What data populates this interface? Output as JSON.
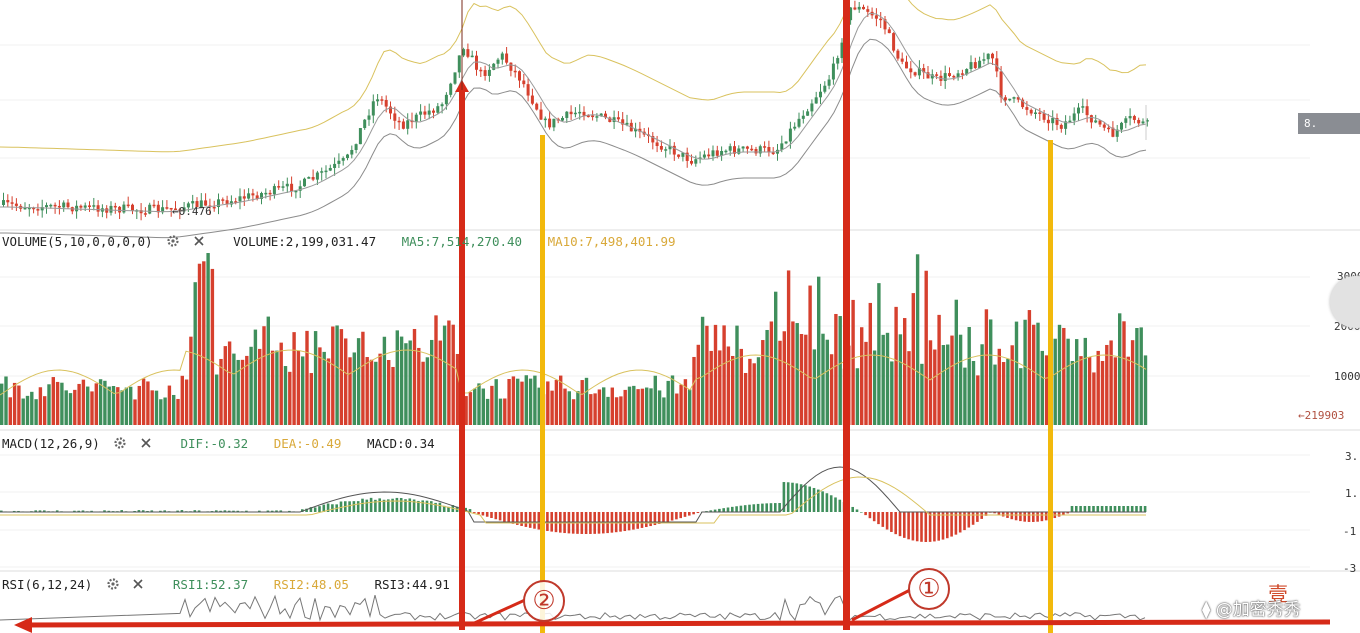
{
  "chart_data": [
    {
      "type": "candlestick",
      "panel": "price",
      "annotations": {
        "low_marker": "0.476",
        "last_price_tag": "8."
      },
      "lines": [
        "MA",
        "Bollinger upper",
        "Bollinger lower"
      ]
    },
    {
      "type": "bar",
      "panel": "volume",
      "indicator": "VOLUME(5,10,0,0,0,0)",
      "volume_label": "VOLUME:2,199,031.47",
      "ma5_label": "MA5:7,514,270.40",
      "ma10_label": "MA10:7,498,401.99",
      "y_ticks": [
        "3000",
        "2000",
        "1000"
      ],
      "last_value_label": "←219903"
    },
    {
      "type": "bar",
      "panel": "macd",
      "indicator": "MACD(12,26,9)",
      "dif_label": "DIF:-0.32",
      "dea_label": "DEA:-0.49",
      "macd_label": "MACD:0.34",
      "y_ticks": [
        "3.",
        "1.",
        "-1",
        "-3"
      ]
    },
    {
      "type": "line",
      "panel": "rsi",
      "indicator": "RSI(6,12,24)",
      "rsi1_label": "RSI1:52.37",
      "rsi2_label": "RSI2:48.05",
      "rsi3_label": "RSI3:44.91"
    }
  ],
  "annotations": {
    "marker_1": "①",
    "marker_2": "②",
    "corner_char": "壹",
    "watermark": "⧫ @加密秀秀"
  },
  "colors": {
    "up": "#3f8f5c",
    "down": "#d6402e",
    "ma_yellow": "#d9c25e",
    "ma_gray": "#9a9a9a",
    "annotation_red": "#d62a18",
    "annotation_yellow": "#f2b90c"
  },
  "icons": [
    "gear-icon",
    "close-icon"
  ]
}
